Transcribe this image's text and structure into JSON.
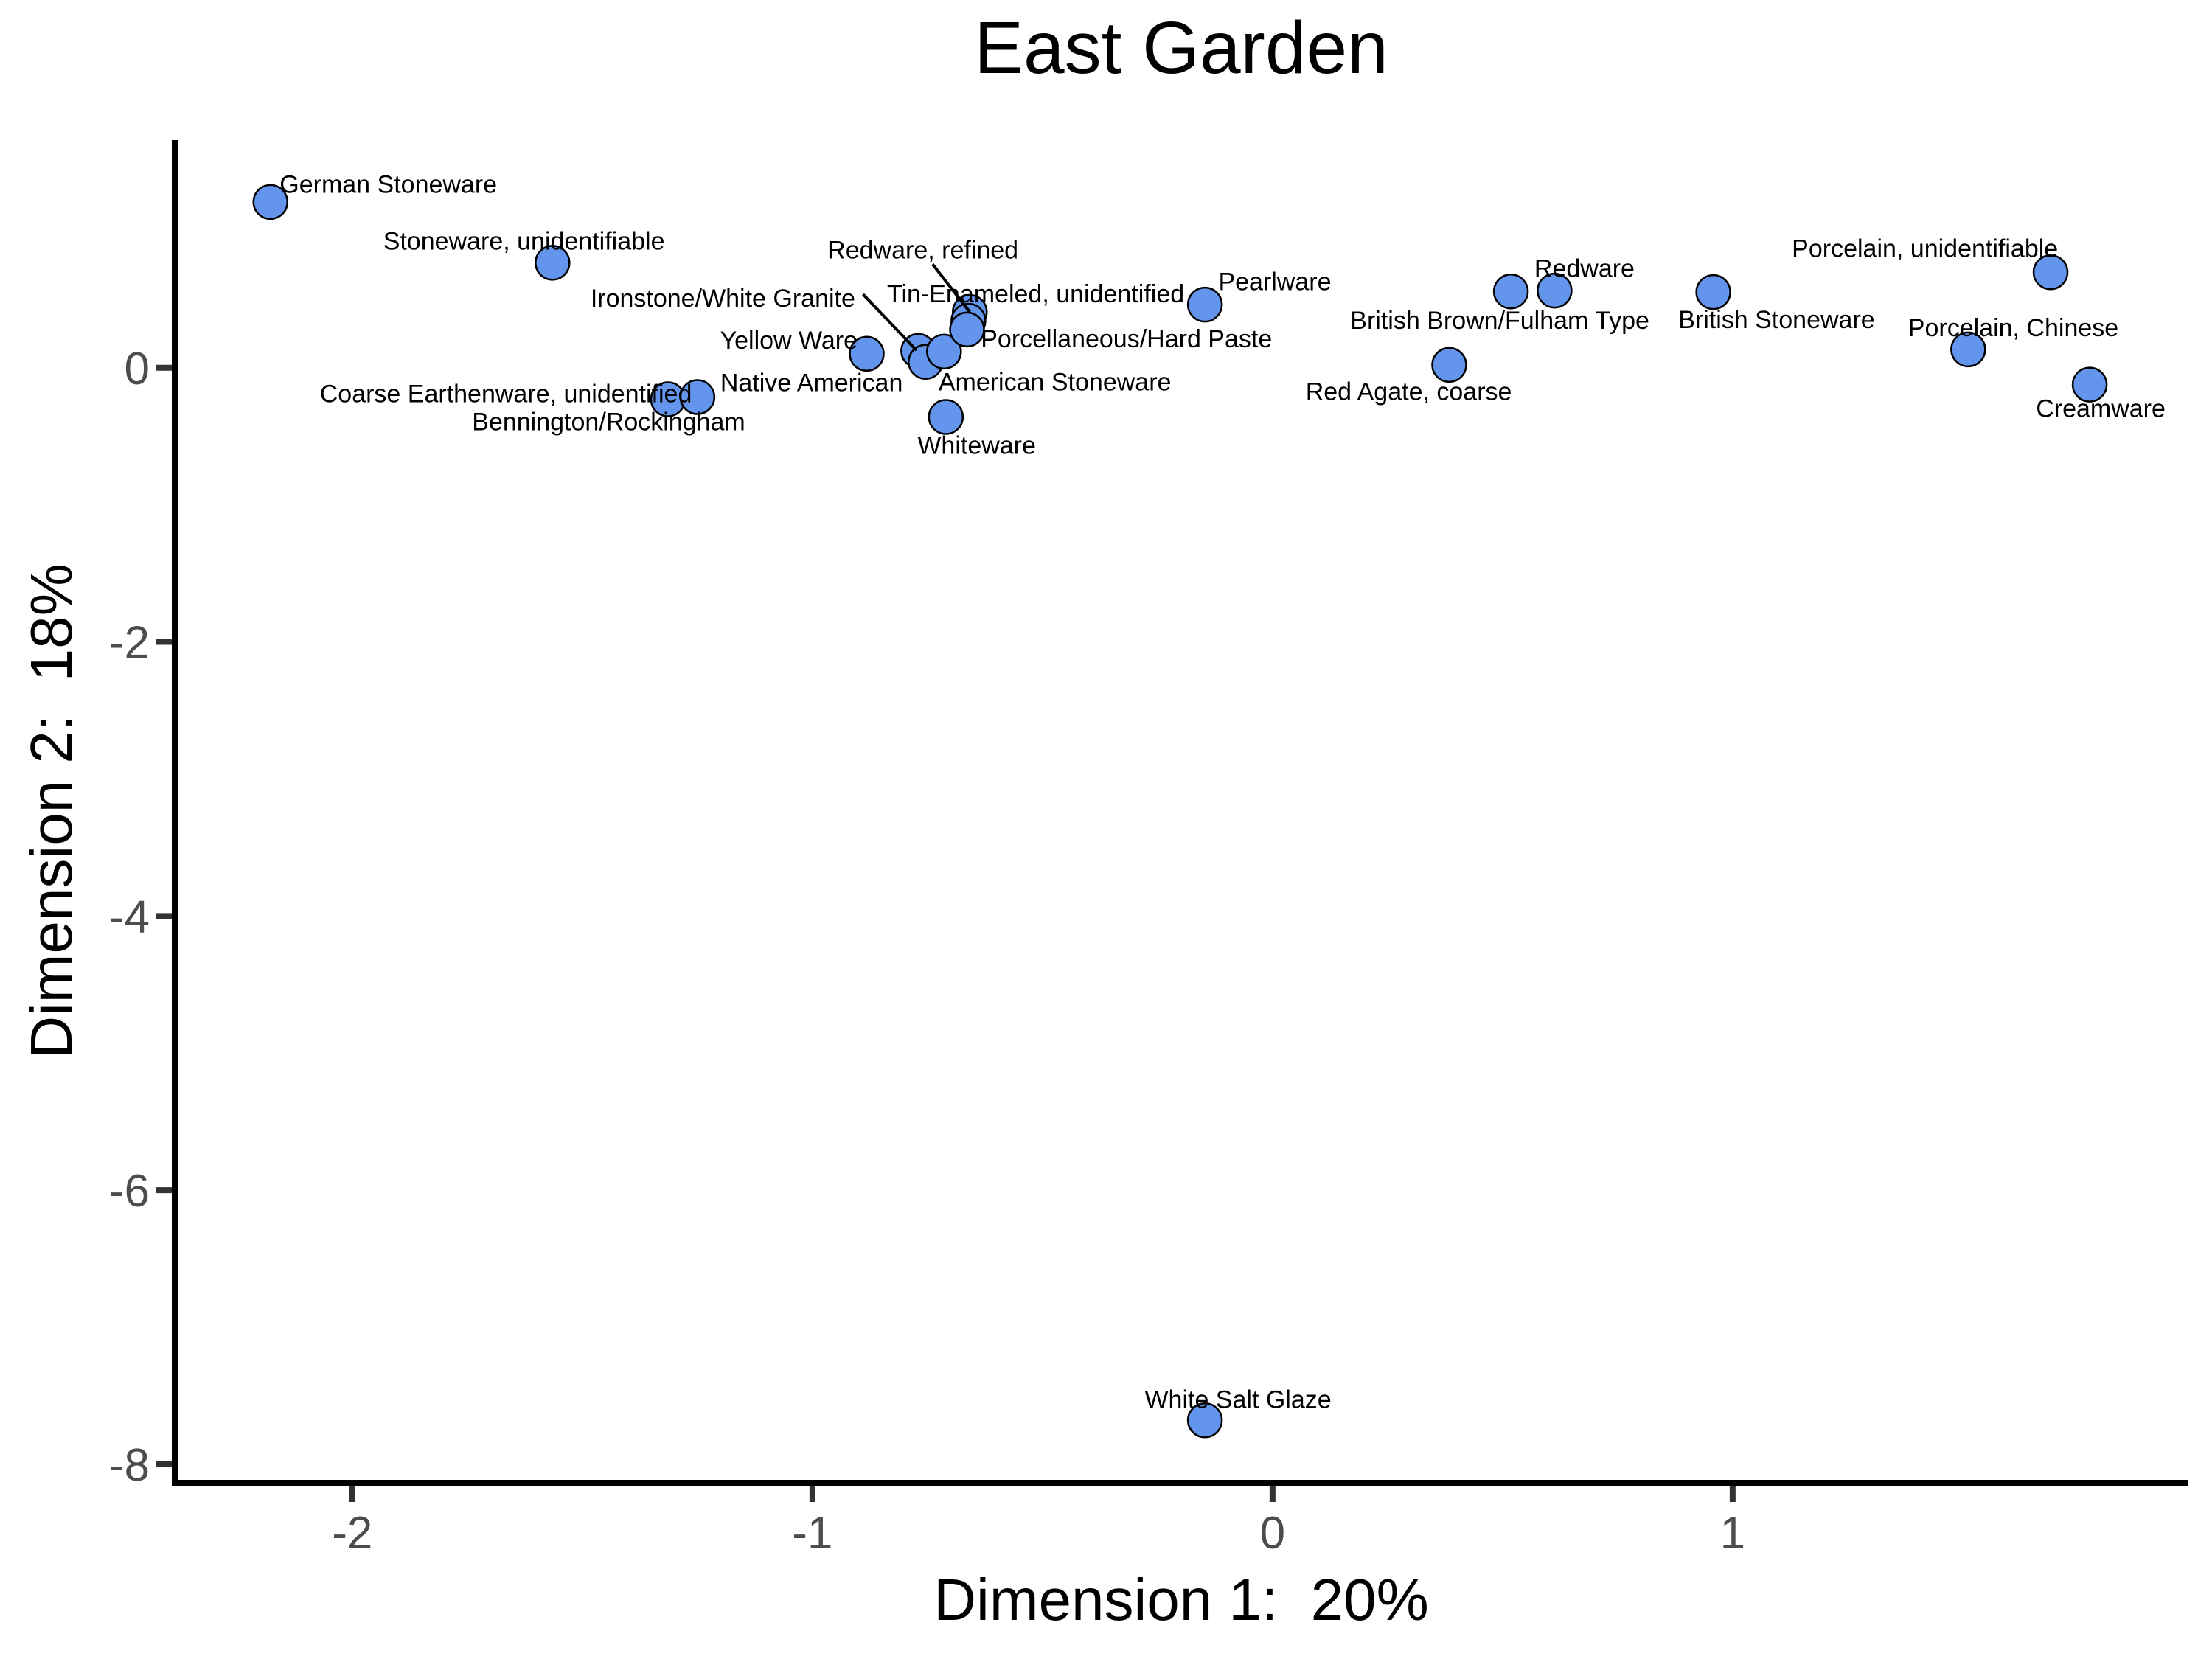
{
  "chart_data": {
    "type": "scatter",
    "title": "East Garden",
    "xlabel": "Dimension 1:  20%",
    "ylabel": "Dimension 2:  18%",
    "grid": false,
    "legend_position": "none",
    "x_ticks": [
      -2,
      -1,
      0,
      1
    ],
    "y_ticks": [
      0,
      -2,
      -4,
      -6,
      -8
    ],
    "xlim": [
      -2.386,
      1.989
    ],
    "ylim": [
      -8.135,
      1.661
    ],
    "colors": {
      "point_fill": "#6495ED",
      "point_stroke": "#000000",
      "axis_line": "#000000",
      "tick_mark": "#333333",
      "tick_label": "#4D4D4D",
      "point_label": "#000000",
      "background": "#FFFFFF"
    },
    "points": [
      {
        "label": "German Stoneware",
        "x": -2.178,
        "y": 1.21,
        "label_x": -2.158,
        "label_y": 1.34,
        "anchor": "start"
      },
      {
        "label": "Stoneware, unidentifiable",
        "x": -1.565,
        "y": 0.766,
        "label_x": -1.627,
        "label_y": 0.927,
        "anchor": "middle"
      },
      {
        "label": "Coarse Earthenware, unidentified",
        "x": -1.314,
        "y": -0.23,
        "label_x": -1.262,
        "label_y": -0.188,
        "anchor": "end"
      },
      {
        "label": "Bennington/Rockingham",
        "x": -1.25,
        "y": -0.214,
        "label_x": -1.146,
        "label_y": -0.391,
        "anchor": "end"
      },
      {
        "label": "Yellow Ware",
        "x": -0.882,
        "y": 0.102,
        "label_x": -0.902,
        "label_y": 0.204,
        "anchor": "end"
      },
      {
        "label": "Ironstone/White Granite",
        "x": -0.77,
        "y": 0.123,
        "label_x": -0.907,
        "label_y": 0.509,
        "anchor": "end",
        "leader": [
          [
            -0.89,
            0.536
          ],
          [
            -0.774,
            0.128
          ]
        ]
      },
      {
        "label": "Native American",
        "x": -0.754,
        "y": 0.043,
        "label_x": -1.002,
        "label_y": -0.107,
        "anchor": "middle"
      },
      {
        "label": "American Stoneware",
        "x": -0.714,
        "y": 0.118,
        "label_x": -0.726,
        "label_y": -0.102,
        "anchor": "start"
      },
      {
        "label": "Redware, refined",
        "x": -0.658,
        "y": 0.407,
        "label_x": -0.76,
        "label_y": 0.863,
        "anchor": "middle",
        "leader": [
          [
            -0.739,
            0.756
          ],
          [
            -0.658,
            0.407
          ]
        ]
      },
      {
        "label": "Tin-Enameled, unidentified",
        "x": -0.661,
        "y": 0.343,
        "label_x": -0.838,
        "label_y": 0.541,
        "anchor": "start"
      },
      {
        "label": "Porcellaneous/Hard Paste",
        "x": -0.664,
        "y": 0.279,
        "label_x": -0.634,
        "label_y": 0.214,
        "anchor": "start"
      },
      {
        "label": "Whiteware",
        "x": -0.71,
        "y": -0.359,
        "label_x": -0.643,
        "label_y": -0.563,
        "anchor": "middle"
      },
      {
        "label": "Pearlware",
        "x": -0.147,
        "y": 0.461,
        "label_x": 0.005,
        "label_y": 0.632,
        "anchor": "middle"
      },
      {
        "label": "Red Agate, coarse",
        "x": 0.384,
        "y": 0.021,
        "label_x": 0.296,
        "label_y": -0.171,
        "anchor": "middle"
      },
      {
        "label": "British Brown/Fulham Type",
        "x": 0.518,
        "y": 0.557,
        "label_x": 0.494,
        "label_y": 0.348,
        "anchor": "middle"
      },
      {
        "label": "Redware",
        "x": 0.613,
        "y": 0.563,
        "label_x": 0.678,
        "label_y": 0.729,
        "anchor": "middle"
      },
      {
        "label": "British Stoneware",
        "x": 0.958,
        "y": 0.552,
        "label_x": 0.882,
        "label_y": 0.354,
        "anchor": "start"
      },
      {
        "label": "Porcelain, unidentifiable",
        "x": 1.691,
        "y": 0.697,
        "label_x": 1.418,
        "label_y": 0.874,
        "anchor": "middle"
      },
      {
        "label": "Porcelain, Chinese",
        "x": 1.512,
        "y": 0.134,
        "label_x": 1.61,
        "label_y": 0.295,
        "anchor": "middle"
      },
      {
        "label": "Creamware",
        "x": 1.776,
        "y": -0.123,
        "label_x": 1.8,
        "label_y": -0.295,
        "anchor": "middle"
      },
      {
        "label": "White Salt Glaze",
        "x": -0.147,
        "y": -7.679,
        "label_x": -0.075,
        "label_y": -7.524,
        "anchor": "middle"
      }
    ]
  }
}
